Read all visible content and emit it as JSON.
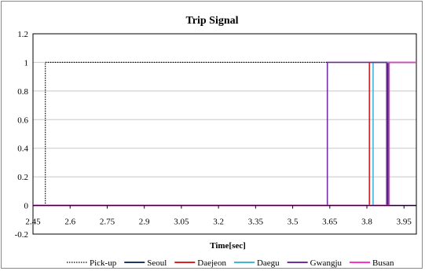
{
  "chart_data": {
    "type": "line",
    "title": "Trip Signal",
    "xlabel": "Time[sec]",
    "ylabel": "",
    "xlim": [
      2.45,
      4.0
    ],
    "ylim": [
      -0.2,
      1.2
    ],
    "x_ticks": [
      "2.45",
      "2.6",
      "2.75",
      "2.9",
      "3.05",
      "3.2",
      "3.35",
      "3.5",
      "3.65",
      "3.8",
      "3.95"
    ],
    "y_ticks": [
      "-0.2",
      "0",
      "0.2",
      "0.4",
      "0.6",
      "0.8",
      "1",
      "1.2"
    ],
    "grid": "horizontal",
    "legend_position": "bottom",
    "series": [
      {
        "name": "Pick-up",
        "color": "#000000",
        "dash": "dotted",
        "x": [
          2.45,
          2.5,
          2.5,
          4.0
        ],
        "y": [
          0,
          0,
          1,
          1
        ]
      },
      {
        "name": "Seoul",
        "color": "#1f3864",
        "dash": "solid",
        "x": [
          2.45,
          3.885,
          3.885,
          4.0
        ],
        "y": [
          0,
          0,
          1,
          1
        ]
      },
      {
        "name": "Daejeon",
        "color": "#e02020",
        "dash": "solid",
        "x": [
          2.45,
          3.81,
          3.81,
          4.0
        ],
        "y": [
          0,
          0,
          1,
          1
        ]
      },
      {
        "name": "Daegu",
        "color": "#3fb8d4",
        "dash": "solid",
        "x": [
          2.45,
          3.825,
          3.825,
          4.0
        ],
        "y": [
          0,
          0,
          1,
          1
        ]
      },
      {
        "name": "Gwangju",
        "color": "#7030a0",
        "dash": "solid",
        "x": [
          2.45,
          3.64,
          3.64,
          3.88,
          3.88,
          4.0
        ],
        "y": [
          0,
          0,
          1,
          1,
          0,
          0
        ]
      },
      {
        "name": "Busan",
        "color": "#ff33cc",
        "dash": "solid",
        "x": [
          2.45,
          3.89,
          3.89,
          4.0
        ],
        "y": [
          0,
          0,
          1,
          1
        ]
      }
    ]
  }
}
